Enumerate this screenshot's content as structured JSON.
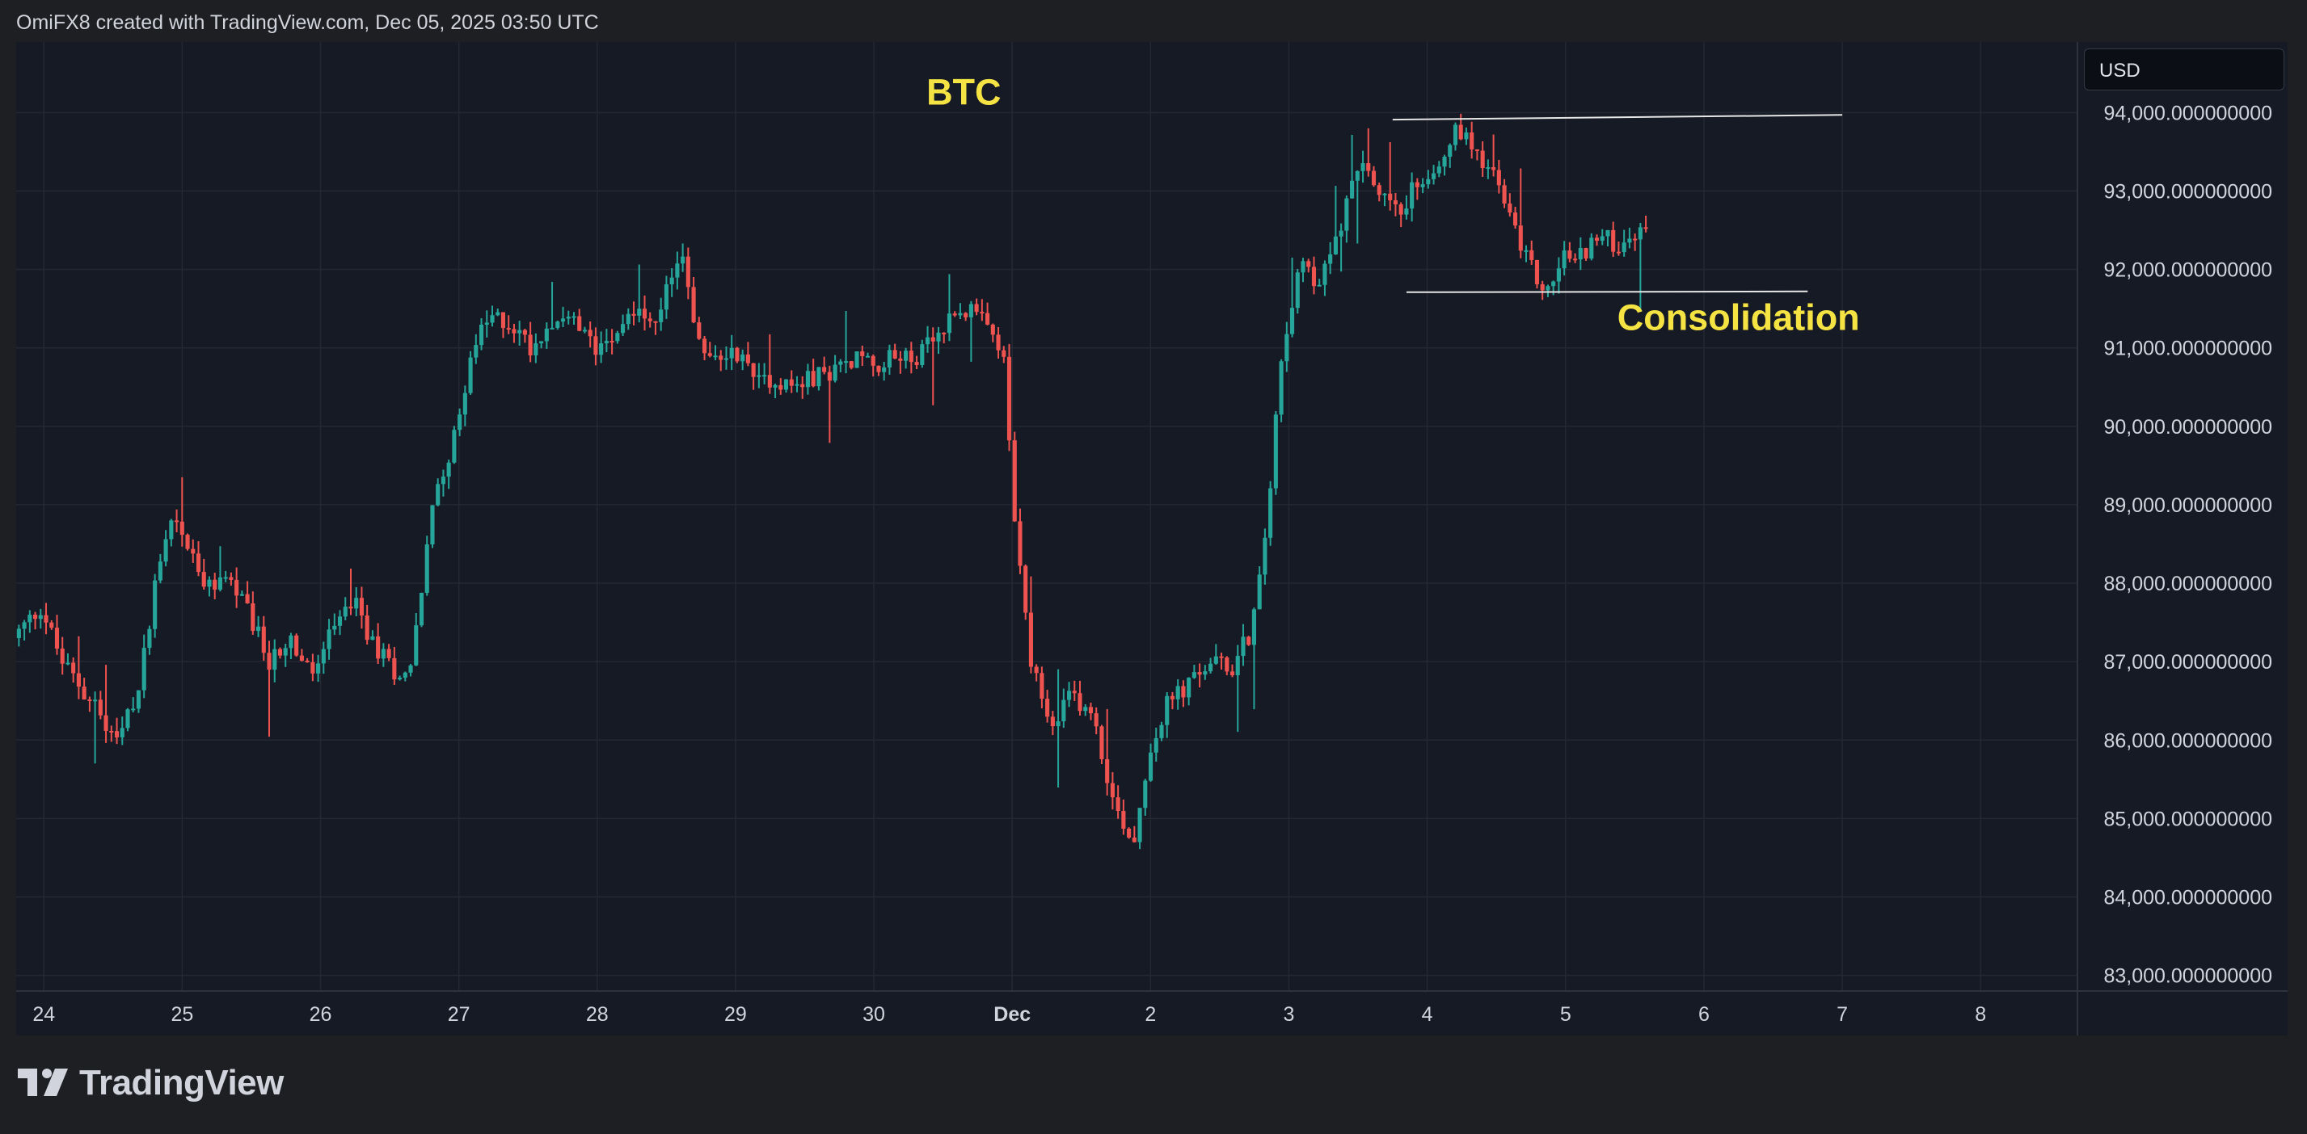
{
  "header": {
    "attribution": "OmiFX8 created with TradingView.com, Dec 05, 2025 03:50 UTC"
  },
  "branding": {
    "logo_text": "TradingView",
    "logo_icon": "tradingview-logo-icon"
  },
  "currency_label": "USD",
  "colors": {
    "up": "#26a69a",
    "down": "#ef5350",
    "annotation_text": "#f5e343",
    "grid": "#242833",
    "axis_text": "#d1d4dc",
    "background": "#161a25"
  },
  "chart_data": {
    "type": "candlestick",
    "title": "",
    "symbol_label": "BTC",
    "x_ticks": [
      {
        "day": 24,
        "label": "24"
      },
      {
        "day": 25,
        "label": "25"
      },
      {
        "day": 26,
        "label": "26"
      },
      {
        "day": 27,
        "label": "27"
      },
      {
        "day": 28,
        "label": "28"
      },
      {
        "day": 29,
        "label": "29"
      },
      {
        "day": 30,
        "label": "30"
      },
      {
        "day": 31,
        "label": "Dec",
        "bold": true
      },
      {
        "day": 32,
        "label": "2"
      },
      {
        "day": 33,
        "label": "3"
      },
      {
        "day": 34,
        "label": "4"
      },
      {
        "day": 35,
        "label": "5"
      },
      {
        "day": 36,
        "label": "6"
      },
      {
        "day": 37,
        "label": "7"
      },
      {
        "day": 38,
        "label": "8"
      }
    ],
    "y_ticks": [
      83000,
      84000,
      85000,
      86000,
      87000,
      88000,
      89000,
      90000,
      91000,
      92000,
      93000,
      94000
    ],
    "y_tick_labels": [
      "83,000.000000000",
      "84,000.000000000",
      "85,000.000000000",
      "86,000.000000000",
      "87,000.000000000",
      "88,000.000000000",
      "89,000.000000000",
      "90,000.000000000",
      "91,000.000000000",
      "92,000.000000000",
      "93,000.000000000",
      "94,000.000000000"
    ],
    "xlim_days": [
      23.8,
      38.7
    ],
    "ylim": [
      82800,
      94900
    ],
    "path_points": [
      [
        23.8,
        87300
      ],
      [
        24.0,
        87700
      ],
      [
        24.15,
        87000
      ],
      [
        24.4,
        86400
      ],
      [
        24.55,
        85950
      ],
      [
        24.7,
        86600
      ],
      [
        24.85,
        88300
      ],
      [
        24.95,
        88900
      ],
      [
        25.05,
        88500
      ],
      [
        25.2,
        87900
      ],
      [
        25.35,
        88100
      ],
      [
        25.5,
        87600
      ],
      [
        25.65,
        87000
      ],
      [
        25.8,
        87300
      ],
      [
        25.95,
        86800
      ],
      [
        26.1,
        87350
      ],
      [
        26.25,
        87800
      ],
      [
        26.4,
        87200
      ],
      [
        26.55,
        86900
      ],
      [
        26.65,
        86800
      ],
      [
        26.75,
        87900
      ],
      [
        26.85,
        89200
      ],
      [
        27.0,
        89900
      ],
      [
        27.1,
        90900
      ],
      [
        27.25,
        91400
      ],
      [
        27.4,
        91300
      ],
      [
        27.55,
        91000
      ],
      [
        27.7,
        91400
      ],
      [
        27.85,
        91300
      ],
      [
        28.0,
        91000
      ],
      [
        28.15,
        91250
      ],
      [
        28.3,
        91500
      ],
      [
        28.45,
        91200
      ],
      [
        28.55,
        91900
      ],
      [
        28.65,
        92300
      ],
      [
        28.72,
        91200
      ],
      [
        28.85,
        90800
      ],
      [
        29.0,
        91000
      ],
      [
        29.15,
        90700
      ],
      [
        29.3,
        90600
      ],
      [
        29.45,
        90500
      ],
      [
        29.6,
        90650
      ],
      [
        29.75,
        90700
      ],
      [
        29.9,
        90900
      ],
      [
        30.05,
        90800
      ],
      [
        30.2,
        90900
      ],
      [
        30.35,
        90900
      ],
      [
        30.5,
        91200
      ],
      [
        30.6,
        91500
      ],
      [
        30.75,
        91450
      ],
      [
        30.85,
        91200
      ],
      [
        30.95,
        91000
      ],
      [
        31.05,
        88500
      ],
      [
        31.15,
        87000
      ],
      [
        31.3,
        86100
      ],
      [
        31.45,
        86600
      ],
      [
        31.6,
        86300
      ],
      [
        31.75,
        85200
      ],
      [
        31.9,
        84700
      ],
      [
        32.0,
        85800
      ],
      [
        32.15,
        86500
      ],
      [
        32.3,
        86700
      ],
      [
        32.45,
        87000
      ],
      [
        32.6,
        86900
      ],
      [
        32.75,
        87400
      ],
      [
        32.85,
        88500
      ],
      [
        32.95,
        90800
      ],
      [
        33.05,
        91700
      ],
      [
        33.12,
        92000
      ],
      [
        33.22,
        91800
      ],
      [
        33.35,
        92300
      ],
      [
        33.45,
        92900
      ],
      [
        33.55,
        93500
      ],
      [
        33.65,
        93000
      ],
      [
        33.8,
        92700
      ],
      [
        33.95,
        93100
      ],
      [
        34.1,
        93400
      ],
      [
        34.25,
        93800
      ],
      [
        34.35,
        93600
      ],
      [
        34.5,
        93200
      ],
      [
        34.65,
        92500
      ],
      [
        34.8,
        91900
      ],
      [
        34.9,
        91700
      ],
      [
        35.0,
        92200
      ],
      [
        35.1,
        92100
      ],
      [
        35.2,
        92350
      ],
      [
        35.3,
        92400
      ],
      [
        35.4,
        92300
      ],
      [
        35.5,
        92500
      ],
      [
        35.6,
        92400
      ]
    ],
    "candle_count": 300,
    "annotations": [
      {
        "text": "BTC",
        "day": 30.65,
        "price": 94100
      },
      {
        "text": "Consolidation",
        "day": 36.25,
        "price": 91230
      }
    ],
    "trendlines": [
      {
        "name": "resistance-line",
        "start": [
          33.75,
          93910
        ],
        "end": [
          37.0,
          93970
        ]
      },
      {
        "name": "support-line",
        "start": [
          33.85,
          91710
        ],
        "end": [
          36.75,
          91720
        ]
      }
    ]
  }
}
